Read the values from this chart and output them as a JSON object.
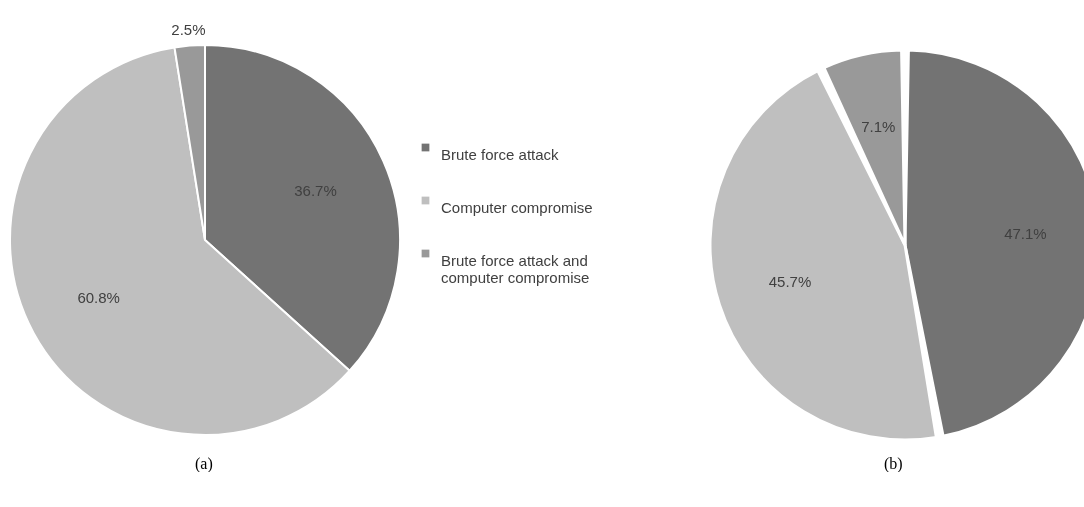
{
  "chart_data": [
    {
      "type": "pie",
      "title": "(a)",
      "categories": [
        "Brute force attack",
        "Computer compromise",
        "Brute force attack and computer compromise"
      ],
      "values": [
        36.7,
        60.8,
        2.5
      ],
      "colors": [
        "#737373",
        "#bfbfbf",
        "#999999"
      ],
      "value_labels": [
        "36.7%",
        "60.8%",
        "2.5%"
      ],
      "legend": "right"
    },
    {
      "type": "pie",
      "title": "(b)",
      "categories": [
        null,
        null,
        null
      ],
      "values": [
        47.1,
        45.7,
        7.1
      ],
      "colors": [
        "#737373",
        "#bfbfbf",
        "#999999"
      ],
      "value_labels": [
        "47.1%",
        "45.7%",
        "7.1%"
      ],
      "legend": false
    }
  ]
}
